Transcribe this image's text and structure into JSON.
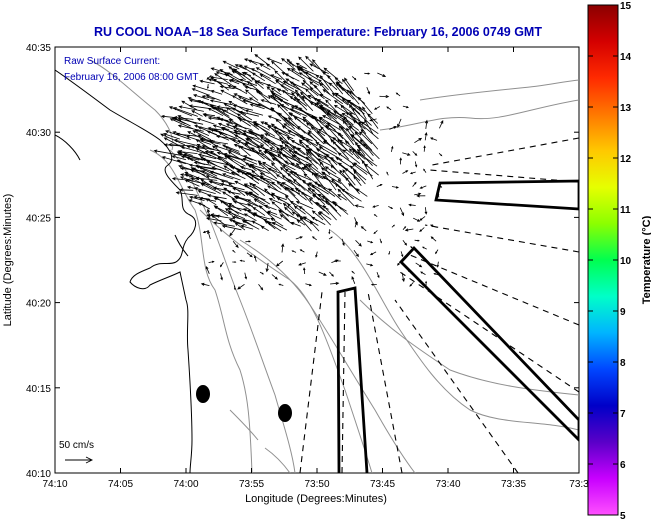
{
  "title": "RU COOL  NOAA−18  Sea Surface Temperature:  February 16, 2006 0749 GMT",
  "legend": {
    "line1": "Raw Surface Current:",
    "line2": "February 16, 2006 08:00 GMT"
  },
  "scale_label": "50 cm/s",
  "axes": {
    "xlabel": "Longitude (Degrees:Minutes)",
    "ylabel": "Latitude (Degrees:Minutes)",
    "xticks": [
      "74:10",
      "74:05",
      "74:00",
      "73:55",
      "73:50",
      "73:45",
      "73:40",
      "73:35",
      "73:3"
    ],
    "yticks": [
      "40:35",
      "40:30",
      "40:25",
      "40:20",
      "40:15",
      "40:10"
    ]
  },
  "colorbar": {
    "label": "Temperature (°C)",
    "ticks": [
      "15",
      "14",
      "13",
      "12",
      "11",
      "10",
      "9",
      "8",
      "7",
      "6",
      "5"
    ],
    "colors": [
      "#8b0000",
      "#d40000",
      "#ff2a00",
      "#ff7800",
      "#ffc800",
      "#e6ff00",
      "#8cff00",
      "#00ff50",
      "#00ffc8",
      "#00b4ff",
      "#0046ff",
      "#0000c8",
      "#5a00c8",
      "#c800ff",
      "#ff50ff"
    ]
  },
  "colors": {
    "title": "#0000b4",
    "legend_text": "#0000b4",
    "contour": "#909090",
    "coast": "#000000"
  }
}
